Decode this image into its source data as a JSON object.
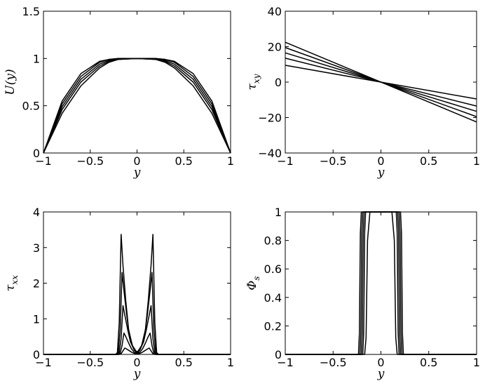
{
  "chart_data": [
    {
      "type": "line",
      "ylabel": "U(y)",
      "xlabel": "y",
      "xlim": [
        -1,
        1
      ],
      "ylim": [
        0,
        1.5
      ],
      "xticks": [
        "−1",
        "−0.5",
        "0",
        "0.5",
        "1"
      ],
      "yticks": [
        "0",
        "0.5",
        "1",
        "1.5"
      ],
      "grid": false,
      "series": [
        {
          "x": [
            -1,
            -0.8,
            -0.6,
            -0.4,
            -0.3,
            -0.2,
            0,
            0.2,
            0.3,
            0.4,
            0.6,
            0.8,
            1
          ],
          "y": [
            0,
            0.55,
            0.84,
            0.97,
            0.99,
            1.0,
            1.0,
            1.0,
            0.99,
            0.97,
            0.84,
            0.55,
            0
          ]
        },
        {
          "x": [
            -1,
            -0.8,
            -0.6,
            -0.4,
            -0.3,
            -0.2,
            0,
            0.2,
            0.3,
            0.4,
            0.6,
            0.8,
            1
          ],
          "y": [
            0,
            0.52,
            0.81,
            0.96,
            0.99,
            1.0,
            1.0,
            1.0,
            0.99,
            0.96,
            0.81,
            0.52,
            0
          ]
        },
        {
          "x": [
            -1,
            -0.8,
            -0.6,
            -0.4,
            -0.3,
            -0.2,
            0,
            0.2,
            0.3,
            0.4,
            0.6,
            0.8,
            1
          ],
          "y": [
            0,
            0.49,
            0.78,
            0.94,
            0.98,
            1.0,
            1.0,
            1.0,
            0.98,
            0.94,
            0.78,
            0.49,
            0
          ]
        },
        {
          "x": [
            -1,
            -0.8,
            -0.6,
            -0.4,
            -0.3,
            -0.2,
            0,
            0.2,
            0.3,
            0.4,
            0.6,
            0.8,
            1
          ],
          "y": [
            0,
            0.46,
            0.75,
            0.92,
            0.97,
            0.99,
            1.0,
            0.99,
            0.97,
            0.92,
            0.75,
            0.46,
            0
          ]
        },
        {
          "x": [
            -1,
            -0.8,
            -0.6,
            -0.4,
            -0.3,
            -0.2,
            0,
            0.2,
            0.3,
            0.4,
            0.6,
            0.8,
            1
          ],
          "y": [
            0,
            0.42,
            0.71,
            0.9,
            0.96,
            0.99,
            1.0,
            0.99,
            0.96,
            0.9,
            0.71,
            0.42,
            0
          ]
        }
      ]
    },
    {
      "type": "line",
      "ylabel": "τ_xy",
      "xlabel": "y",
      "xlim": [
        -1,
        1
      ],
      "ylim": [
        -40,
        40
      ],
      "xticks": [
        "−1",
        "−0.5",
        "0",
        "0.5",
        "1"
      ],
      "yticks": [
        "−40",
        "−20",
        "0",
        "20",
        "40"
      ],
      "grid": false,
      "series": [
        {
          "x": [
            -1,
            1
          ],
          "y": [
            22.5,
            -22.5
          ]
        },
        {
          "x": [
            -1,
            1
          ],
          "y": [
            19.5,
            -19.5
          ]
        },
        {
          "x": [
            -1,
            1
          ],
          "y": [
            16.5,
            -16.5
          ]
        },
        {
          "x": [
            -1,
            1
          ],
          "y": [
            13.5,
            -13.5
          ]
        },
        {
          "x": [
            -1,
            1
          ],
          "y": [
            9.5,
            -9.5
          ]
        }
      ]
    },
    {
      "type": "line",
      "ylabel": "τ_xx",
      "xlabel": "y",
      "xlim": [
        -1,
        1
      ],
      "ylim": [
        0,
        4
      ],
      "xticks": [
        "−1",
        "−0.5",
        "0",
        "0.5",
        "1"
      ],
      "yticks": [
        "0",
        "1",
        "2",
        "3",
        "4"
      ],
      "grid": false,
      "series": [
        {
          "x": [
            -1,
            -0.23,
            -0.21,
            -0.19,
            -0.17,
            -0.15,
            -0.12,
            -0.09,
            -0.05,
            0,
            0.05,
            0.09,
            0.12,
            0.15,
            0.17,
            0.19,
            0.21,
            0.23,
            1
          ],
          "y": [
            0,
            0,
            0.05,
            0.9,
            3.37,
            2.5,
            1.5,
            0.7,
            0.25,
            0.05,
            0.25,
            0.7,
            1.5,
            2.5,
            3.37,
            0.9,
            0.05,
            0,
            0
          ]
        },
        {
          "x": [
            -1,
            -0.22,
            -0.2,
            -0.18,
            -0.16,
            -0.14,
            -0.11,
            -0.08,
            -0.04,
            0,
            0.04,
            0.08,
            0.11,
            0.14,
            0.16,
            0.18,
            0.2,
            0.22,
            1
          ],
          "y": [
            0,
            0,
            0.05,
            0.7,
            2.3,
            1.8,
            1.1,
            0.5,
            0.18,
            0.04,
            0.18,
            0.5,
            1.1,
            1.8,
            2.3,
            0.7,
            0.05,
            0,
            0
          ]
        },
        {
          "x": [
            -1,
            -0.21,
            -0.19,
            -0.17,
            -0.15,
            -0.13,
            -0.1,
            -0.07,
            -0.03,
            0,
            0.03,
            0.07,
            0.1,
            0.13,
            0.15,
            0.17,
            0.19,
            0.21,
            1
          ],
          "y": [
            0,
            0,
            0.05,
            0.45,
            1.37,
            1.1,
            0.7,
            0.35,
            0.12,
            0.03,
            0.12,
            0.35,
            0.7,
            1.1,
            1.37,
            0.45,
            0.05,
            0,
            0
          ]
        },
        {
          "x": [
            -1,
            -0.2,
            -0.18,
            -0.16,
            -0.14,
            -0.12,
            -0.09,
            -0.06,
            -0.03,
            0,
            0.03,
            0.06,
            0.09,
            0.12,
            0.14,
            0.16,
            0.18,
            0.2,
            1
          ],
          "y": [
            0,
            0,
            0.03,
            0.25,
            0.6,
            0.5,
            0.32,
            0.16,
            0.06,
            0.02,
            0.06,
            0.16,
            0.32,
            0.5,
            0.6,
            0.25,
            0.03,
            0,
            0
          ]
        },
        {
          "x": [
            -1,
            -0.19,
            -0.17,
            -0.15,
            -0.13,
            -0.11,
            -0.08,
            -0.05,
            -0.02,
            0,
            0.02,
            0.05,
            0.08,
            0.11,
            0.13,
            0.15,
            0.17,
            0.19,
            1
          ],
          "y": [
            0,
            0,
            0.02,
            0.1,
            0.18,
            0.15,
            0.1,
            0.05,
            0.02,
            0.01,
            0.02,
            0.05,
            0.1,
            0.15,
            0.18,
            0.1,
            0.02,
            0,
            0
          ]
        }
      ]
    },
    {
      "type": "line",
      "ylabel": "Φ_s",
      "xlabel": "y",
      "xlim": [
        -1,
        1
      ],
      "ylim": [
        0,
        1
      ],
      "xticks": [
        "−1",
        "−0.5",
        "0",
        "0.5",
        "1"
      ],
      "yticks": [
        "0",
        "0.2",
        "0.4",
        "0.6",
        "0.8",
        "1"
      ],
      "grid": false,
      "series": [
        {
          "x": [
            -1,
            -0.235,
            -0.225,
            -0.215,
            -0.205,
            0.205,
            0.215,
            0.225,
            0.235,
            1
          ],
          "y": [
            0,
            0,
            0.15,
            0.85,
            1,
            1,
            0.85,
            0.15,
            0,
            0
          ]
        },
        {
          "x": [
            -1,
            -0.22,
            -0.21,
            -0.2,
            -0.19,
            0.19,
            0.2,
            0.21,
            0.22,
            1
          ],
          "y": [
            0,
            0,
            0.15,
            0.85,
            1,
            1,
            0.85,
            0.15,
            0,
            0
          ]
        },
        {
          "x": [
            -1,
            -0.205,
            -0.195,
            -0.185,
            -0.175,
            0.175,
            0.185,
            0.195,
            0.205,
            1
          ],
          "y": [
            0,
            0,
            0.15,
            0.85,
            1,
            1,
            0.85,
            0.15,
            0,
            0
          ]
        },
        {
          "x": [
            -1,
            -0.19,
            -0.18,
            -0.17,
            -0.16,
            0.16,
            0.17,
            0.18,
            0.19,
            1
          ],
          "y": [
            0,
            0,
            0.15,
            0.85,
            1,
            1,
            0.85,
            0.15,
            0,
            0
          ]
        },
        {
          "x": [
            -1,
            -0.17,
            -0.155,
            -0.14,
            -0.115,
            0.115,
            0.14,
            0.155,
            0.17,
            1
          ],
          "y": [
            0,
            0,
            0.12,
            0.8,
            1,
            1,
            0.8,
            0.12,
            0,
            0
          ]
        }
      ]
    }
  ]
}
